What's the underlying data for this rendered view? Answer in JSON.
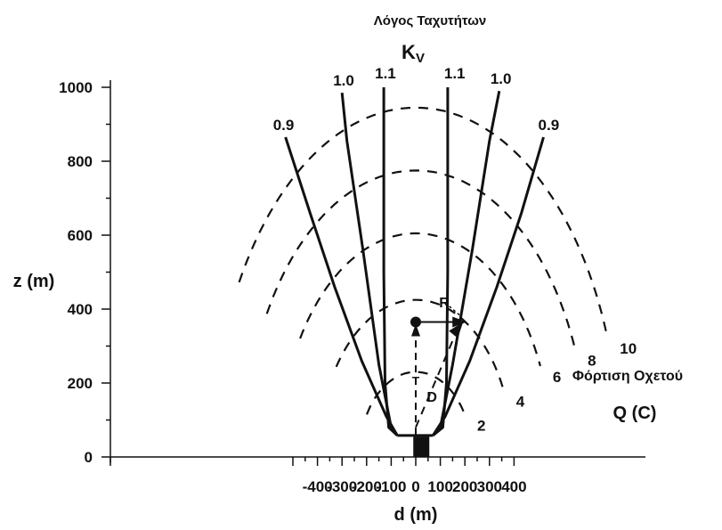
{
  "chart_data": {
    "type": "line",
    "title": "Λόγος Ταχυτήτων",
    "subtitle": "K",
    "subtitle_sub": "V",
    "xlabel": "d (m)",
    "ylabel": "z (m)",
    "xlim": [
      -560,
      530
    ],
    "ylim": [
      -20,
      1050
    ],
    "x_ticks": [
      -400,
      -300,
      -200,
      -100,
      0,
      100,
      200,
      300,
      400
    ],
    "x_tick_labels": [
      "-400",
      "-300",
      "-200",
      "-100",
      "0",
      "100",
      "200",
      "300",
      "400"
    ],
    "y_ticks": [
      0,
      200,
      400,
      600,
      800,
      1000
    ],
    "y_tick_labels": [
      "0",
      "200",
      "400",
      "600",
      "800",
      "1000"
    ],
    "grid": false,
    "velocity_ratio_curves": [
      {
        "label": "0.9",
        "side": "left",
        "points": [
          [
            -75,
            58
          ],
          [
            -120,
            110
          ],
          [
            -220,
            260
          ],
          [
            -330,
            460
          ],
          [
            -430,
            660
          ],
          [
            -530,
            865
          ]
        ]
      },
      {
        "label": "1.0",
        "side": "left",
        "points": [
          [
            -75,
            58
          ],
          [
            -100,
            80
          ],
          [
            -150,
            250
          ],
          [
            -215,
            560
          ],
          [
            -280,
            855
          ],
          [
            -300,
            985
          ]
        ]
      },
      {
        "label": "1.1",
        "side": "left",
        "points": [
          [
            -75,
            58
          ],
          [
            -110,
            80
          ],
          [
            -125,
            200
          ],
          [
            -130,
            500
          ],
          [
            -130,
            1000
          ]
        ]
      },
      {
        "label": "1.1",
        "side": "right",
        "points": [
          [
            70,
            58
          ],
          [
            110,
            80
          ],
          [
            125,
            200
          ],
          [
            130,
            500
          ],
          [
            130,
            1000
          ]
        ]
      },
      {
        "label": "1.0",
        "side": "right",
        "points": [
          [
            70,
            58
          ],
          [
            100,
            80
          ],
          [
            150,
            250
          ],
          [
            230,
            560
          ],
          [
            300,
            855
          ],
          [
            340,
            990
          ]
        ]
      },
      {
        "label": "0.9",
        "side": "right",
        "points": [
          [
            70,
            58
          ],
          [
            120,
            110
          ],
          [
            220,
            260
          ],
          [
            330,
            460
          ],
          [
            430,
            660
          ],
          [
            520,
            865
          ]
        ]
      }
    ],
    "discharge_curves": [
      {
        "label": "2",
        "cx": 0,
        "cz": 0,
        "rd": 230,
        "rz": 230,
        "from_deg": 150,
        "to_deg": 30
      },
      {
        "label": "4",
        "cx": 0,
        "cz": 0,
        "rd": 395,
        "rz": 425,
        "from_deg": 145,
        "to_deg": 25
      },
      {
        "label": "6",
        "cx": 0,
        "cz": 0,
        "rd": 555,
        "rz": 605,
        "from_deg": 148,
        "to_deg": 24
      },
      {
        "label": "8",
        "cx": 0,
        "cz": 0,
        "rd": 700,
        "rz": 775,
        "from_deg": 150,
        "to_deg": 22
      },
      {
        "label": "10",
        "cx": 0,
        "cz": 0,
        "rd": 830,
        "rz": 945,
        "from_deg": 150,
        "to_deg": 20
      }
    ],
    "annotations": {
      "R": "R",
      "D": "D",
      "source_label": "Φόρτιση Οχετού",
      "source_symbol": "Q (C)",
      "plume_point": {
        "d": 0,
        "z": 365
      },
      "arrow_end": {
        "d": 200,
        "z": 365
      }
    },
    "colors": {
      "ink": "#111111",
      "background": "#ffffff"
    }
  }
}
